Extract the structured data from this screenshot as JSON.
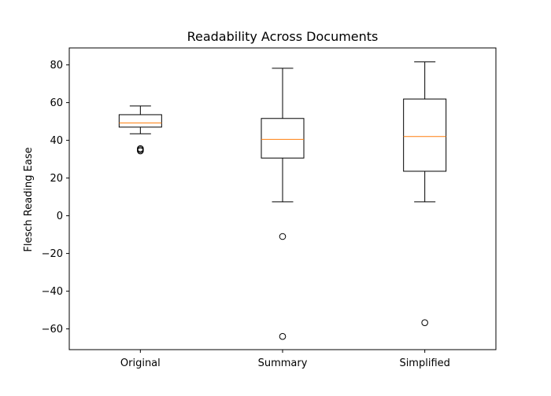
{
  "chart_data": {
    "type": "box",
    "title": "Readability Across Documents",
    "xlabel": "",
    "ylabel": "Flesch Reading Ease",
    "ylim": [
      -71,
      89
    ],
    "yticks": [
      -60,
      -40,
      -20,
      0,
      20,
      40,
      60,
      80
    ],
    "categories": [
      "Original",
      "Summary",
      "Simplified"
    ],
    "grid": false,
    "box_color": "#000000",
    "median_color": "#ff7f0e",
    "boxes": [
      {
        "name": "Original",
        "whisker_low": 43.5,
        "q1": 47.0,
        "median": 49.2,
        "q3": 53.6,
        "whisker_high": 58.2,
        "outliers": [
          35.6,
          35.0,
          34.4
        ]
      },
      {
        "name": "Summary",
        "whisker_low": 7.4,
        "q1": 30.6,
        "median": 40.5,
        "q3": 51.6,
        "whisker_high": 78.2,
        "outliers": [
          -11.0,
          -64.0
        ]
      },
      {
        "name": "Simplified",
        "whisker_low": 7.4,
        "q1": 23.6,
        "median": 42.0,
        "q3": 61.9,
        "whisker_high": 81.6,
        "outliers": [
          -56.7
        ]
      }
    ]
  }
}
